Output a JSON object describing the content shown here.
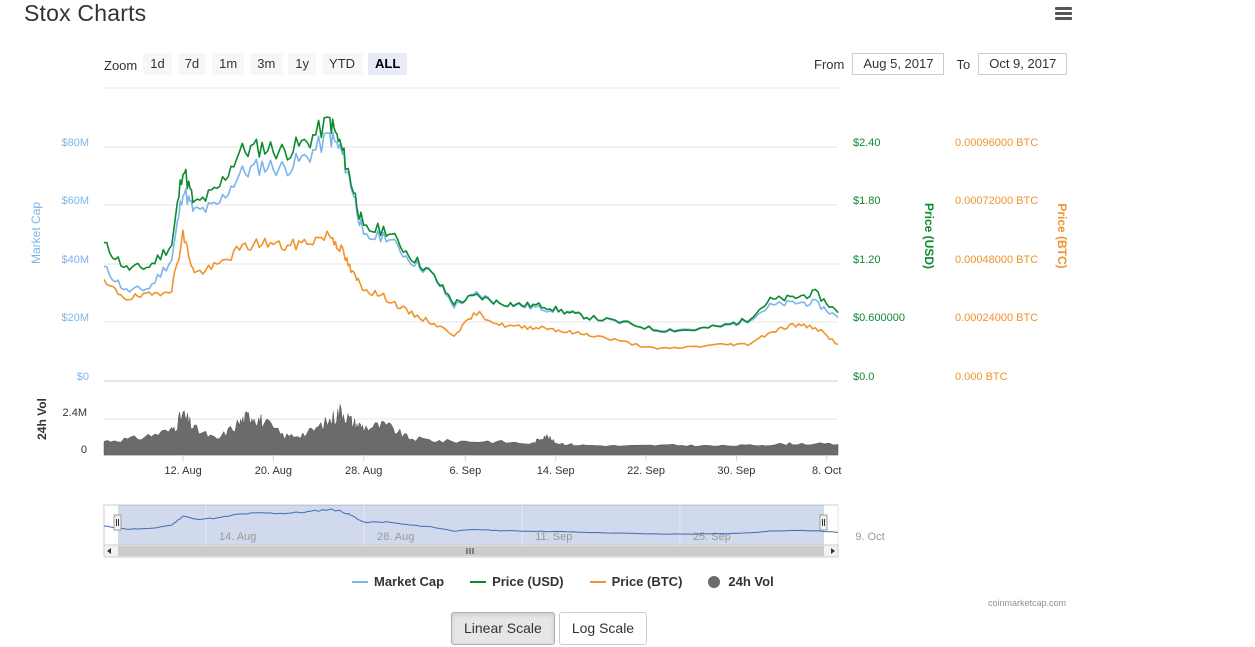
{
  "page": {
    "title": "Stox Charts"
  },
  "zoom": {
    "label": "Zoom",
    "buttons": [
      "1d",
      "7d",
      "1m",
      "3m",
      "1y",
      "YTD",
      "ALL"
    ],
    "active": "ALL"
  },
  "date_range": {
    "from_label": "From",
    "from_value": "Aug 5, 2017",
    "to_label": "To",
    "to_value": "Oct 9, 2017"
  },
  "legend": [
    {
      "name": "Market Cap",
      "color": "#7cb5ec"
    },
    {
      "name": "Price (USD)",
      "color": "#0c8a2e"
    },
    {
      "name": "Price (BTC)",
      "color": "#f0932b"
    },
    {
      "name": "24h Vol",
      "color": "#6b6b6b"
    }
  ],
  "credit": "coinmarketcap.com",
  "scale_buttons": {
    "linear": "Linear Scale",
    "log": "Log Scale",
    "active": "linear"
  },
  "chart_data": {
    "type": "line",
    "title": "",
    "x_start": "2017-08-05",
    "x_end": "2017-10-09",
    "x_tick_labels": [
      "12. Aug",
      "20. Aug",
      "28. Aug",
      "6. Sep",
      "14. Sep",
      "22. Sep",
      "30. Sep",
      "8. Oct"
    ],
    "x_tick_dates": [
      "2017-08-12",
      "2017-08-20",
      "2017-08-28",
      "2017-09-06",
      "2017-09-14",
      "2017-09-22",
      "2017-09-30",
      "2017-10-08"
    ],
    "axes": {
      "market_cap": {
        "label": "Market Cap",
        "ticks": [
          "$0",
          "$20M",
          "$40M",
          "$60M",
          "$80M"
        ],
        "range": [
          0,
          80000000
        ],
        "color": "#7cb5ec"
      },
      "price_usd": {
        "label": "Price (USD)",
        "ticks": [
          "$0.0",
          "$0.600000",
          "$1.20",
          "$1.80",
          "$2.40"
        ],
        "range": [
          0,
          2.4
        ],
        "color": "#0c8a2e"
      },
      "price_btc": {
        "label": "Price (BTC)",
        "ticks": [
          "0.000 BTC",
          "0.00024000 BTC",
          "0.00048000 BTC",
          "0.00072000 BTC",
          "0.00096000 BTC"
        ],
        "range": [
          0,
          0.00096
        ],
        "color": "#f0932b"
      },
      "volume": {
        "label": "24h Vol",
        "ticks": [
          "0",
          "2.4M"
        ],
        "range": [
          0,
          2400000
        ],
        "color": "#333333"
      }
    },
    "series": [
      {
        "name": "Market Cap",
        "axis": "market_cap",
        "x": [
          "2017-08-05",
          "2017-08-07",
          "2017-08-09",
          "2017-08-11",
          "2017-08-12",
          "2017-08-13",
          "2017-08-15",
          "2017-08-17",
          "2017-08-19",
          "2017-08-21",
          "2017-08-23",
          "2017-08-25",
          "2017-08-26",
          "2017-08-27",
          "2017-08-28",
          "2017-08-30",
          "2017-09-01",
          "2017-09-03",
          "2017-09-05",
          "2017-09-07",
          "2017-09-09",
          "2017-09-11",
          "2017-09-13",
          "2017-09-15",
          "2017-09-17",
          "2017-09-20",
          "2017-09-23",
          "2017-09-26",
          "2017-09-29",
          "2017-10-01",
          "2017-10-03",
          "2017-10-05",
          "2017-10-07",
          "2017-10-09"
        ],
        "values": [
          37000000,
          29000000,
          30000000,
          40000000,
          64000000,
          56000000,
          58000000,
          69000000,
          72000000,
          71000000,
          75000000,
          82000000,
          77000000,
          64000000,
          47000000,
          48000000,
          40000000,
          35000000,
          24000000,
          28000000,
          25000000,
          24000000,
          23000000,
          22000000,
          20000000,
          18000000,
          16000000,
          16000000,
          17000000,
          19000000,
          24000000,
          25000000,
          25000000,
          20000000
        ]
      },
      {
        "name": "Price (USD)",
        "axis": "price_usd",
        "x": [
          "2017-08-05",
          "2017-08-07",
          "2017-08-09",
          "2017-08-11",
          "2017-08-12",
          "2017-08-13",
          "2017-08-15",
          "2017-08-17",
          "2017-08-19",
          "2017-08-21",
          "2017-08-23",
          "2017-08-25",
          "2017-08-26",
          "2017-08-27",
          "2017-08-28",
          "2017-08-30",
          "2017-09-01",
          "2017-09-03",
          "2017-09-05",
          "2017-09-07",
          "2017-09-09",
          "2017-09-11",
          "2017-09-13",
          "2017-09-15",
          "2017-09-17",
          "2017-09-20",
          "2017-09-23",
          "2017-09-26",
          "2017-09-29",
          "2017-10-01",
          "2017-10-03",
          "2017-10-05",
          "2017-10-07",
          "2017-10-09"
        ],
        "values": [
          1.35,
          1.1,
          1.12,
          1.35,
          2.15,
          1.75,
          1.9,
          2.3,
          2.35,
          2.3,
          2.4,
          2.62,
          2.35,
          1.95,
          1.5,
          1.5,
          1.25,
          1.05,
          0.75,
          0.82,
          0.75,
          0.73,
          0.72,
          0.65,
          0.6,
          0.55,
          0.47,
          0.47,
          0.52,
          0.58,
          0.78,
          0.8,
          0.85,
          0.65
        ]
      },
      {
        "name": "Price (BTC)",
        "axis": "price_btc",
        "x": [
          "2017-08-05",
          "2017-08-07",
          "2017-08-09",
          "2017-08-11",
          "2017-08-12",
          "2017-08-13",
          "2017-08-15",
          "2017-08-17",
          "2017-08-19",
          "2017-08-21",
          "2017-08-23",
          "2017-08-25",
          "2017-08-26",
          "2017-08-27",
          "2017-08-28",
          "2017-08-30",
          "2017-09-01",
          "2017-09-03",
          "2017-09-05",
          "2017-09-07",
          "2017-09-09",
          "2017-09-11",
          "2017-09-13",
          "2017-09-15",
          "2017-09-17",
          "2017-09-20",
          "2017-09-23",
          "2017-09-26",
          "2017-09-29",
          "2017-10-01",
          "2017-10-03",
          "2017-10-05",
          "2017-10-07",
          "2017-10-09"
        ],
        "values": [
          0.00038,
          0.00032,
          0.00033,
          0.00036,
          0.00058,
          0.00042,
          0.00045,
          0.00052,
          0.00055,
          0.00053,
          0.00055,
          0.00058,
          0.00052,
          0.00042,
          0.00036,
          0.00032,
          0.00026,
          0.00022,
          0.00017,
          0.00026,
          0.00021,
          0.0002,
          0.0002,
          0.00018,
          0.00017,
          0.00014,
          0.00011,
          0.00012,
          0.00013,
          0.00013,
          0.00018,
          0.00021,
          0.0002,
          0.00013
        ]
      },
      {
        "name": "24h Vol",
        "axis": "volume",
        "type": "area",
        "x": [
          "2017-08-05",
          "2017-08-08",
          "2017-08-11",
          "2017-08-12",
          "2017-08-13",
          "2017-08-15",
          "2017-08-17",
          "2017-08-18",
          "2017-08-19",
          "2017-08-21",
          "2017-08-23",
          "2017-08-25",
          "2017-08-26",
          "2017-08-27",
          "2017-08-28",
          "2017-08-30",
          "2017-09-01",
          "2017-09-04",
          "2017-09-08",
          "2017-09-12",
          "2017-09-13",
          "2017-09-14",
          "2017-09-16",
          "2017-09-20",
          "2017-09-24",
          "2017-09-28",
          "2017-10-02",
          "2017-10-05",
          "2017-10-09"
        ],
        "values": [
          500000,
          700000,
          1200000,
          2200000,
          1300000,
          600000,
          1700000,
          2200000,
          1800000,
          800000,
          1000000,
          1800000,
          2500000,
          1700000,
          1400000,
          1500000,
          700000,
          500000,
          500000,
          350000,
          900000,
          400000,
          250000,
          200000,
          250000,
          200000,
          250000,
          350000,
          300000
        ]
      }
    ],
    "navigator": {
      "tick_labels": [
        "14. Aug",
        "28. Aug",
        "11. Sep",
        "25. Sep",
        "9. Oct"
      ]
    }
  }
}
